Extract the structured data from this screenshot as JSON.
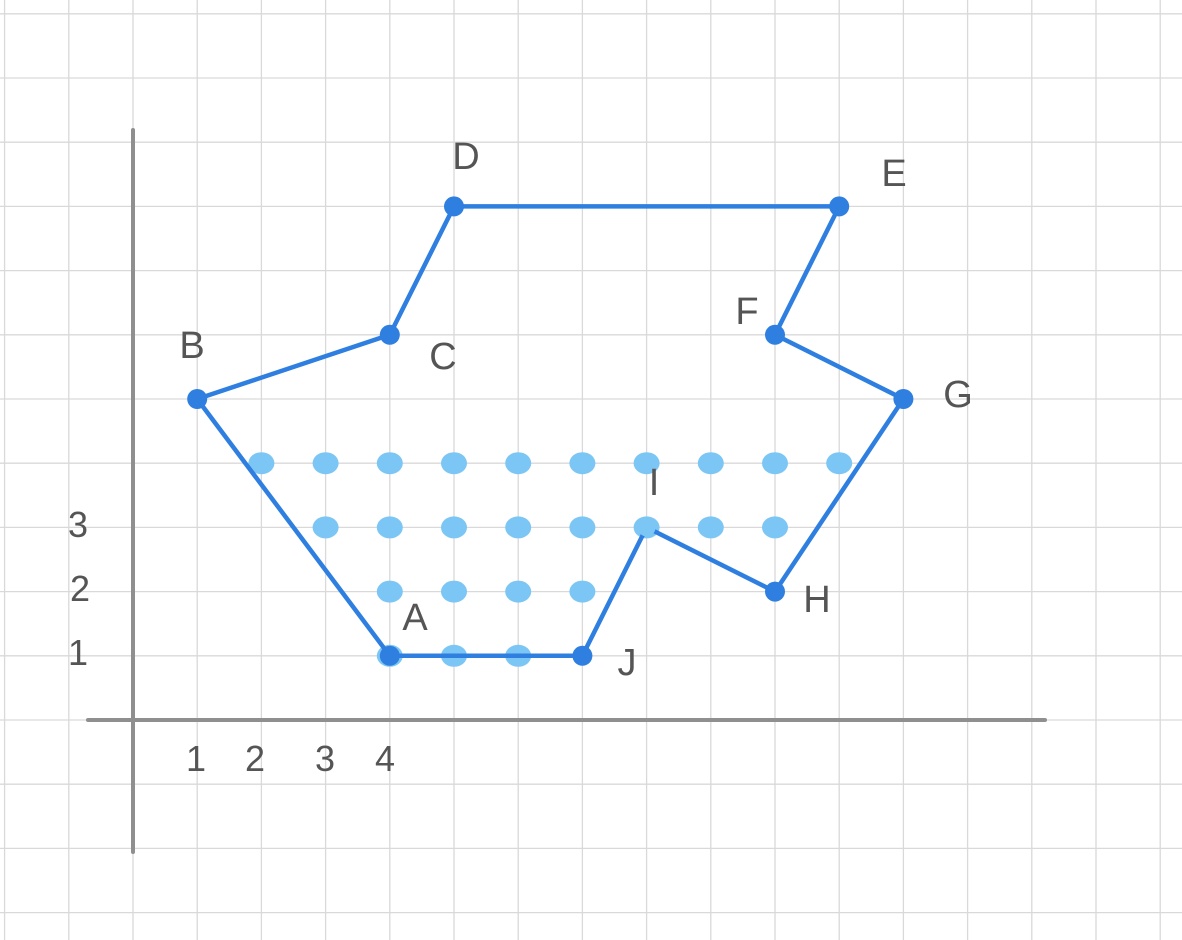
{
  "diagram": {
    "colors": {
      "polygon": "#2f7fe0",
      "vertex": "#2f7fe0",
      "lattice_dot": "#7cc6f5",
      "grid": "#d9d9d9",
      "axis": "#8f8f8f",
      "label": "#555555",
      "label_highlight": "#2a4f86"
    },
    "x_axis_ticks": [
      "1",
      "2",
      "3",
      "4"
    ],
    "y_axis_ticks": [
      "3",
      "2",
      "1"
    ],
    "vertices": [
      {
        "label": "A",
        "x": 4,
        "y": 1
      },
      {
        "label": "B",
        "x": 1,
        "y": 5
      },
      {
        "label": "C",
        "x": 4,
        "y": 6
      },
      {
        "label": "D",
        "x": 5,
        "y": 8
      },
      {
        "label": "E",
        "x": 11,
        "y": 8
      },
      {
        "label": "F",
        "x": 10,
        "y": 6
      },
      {
        "label": "G",
        "x": 12,
        "y": 5
      },
      {
        "label": "H",
        "x": 10,
        "y": 2
      },
      {
        "label": "I",
        "x": 8,
        "y": 3
      },
      {
        "label": "J",
        "x": 7,
        "y": 1
      }
    ],
    "lattice_points": [
      [
        2,
        4
      ],
      [
        3,
        4
      ],
      [
        4,
        4
      ],
      [
        5,
        4
      ],
      [
        6,
        4
      ],
      [
        7,
        4
      ],
      [
        8,
        4
      ],
      [
        9,
        4
      ],
      [
        10,
        4
      ],
      [
        11,
        4
      ],
      [
        3,
        3
      ],
      [
        4,
        3
      ],
      [
        5,
        3
      ],
      [
        6,
        3
      ],
      [
        7,
        3
      ],
      [
        8,
        3
      ],
      [
        9,
        3
      ],
      [
        10,
        3
      ],
      [
        4,
        2
      ],
      [
        5,
        2
      ],
      [
        6,
        2
      ],
      [
        7,
        2
      ],
      [
        4,
        1
      ],
      [
        5,
        1
      ],
      [
        6,
        1
      ]
    ]
  }
}
